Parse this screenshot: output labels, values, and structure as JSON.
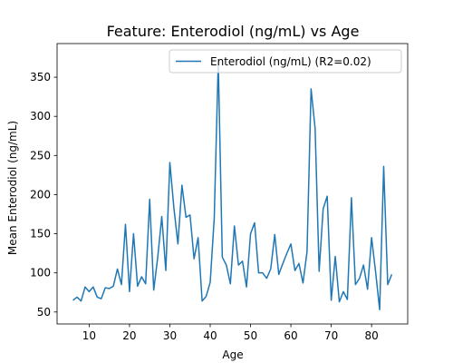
{
  "chart_data": {
    "type": "line",
    "title": "Feature: Enterodiol (ng/mL) vs Age",
    "xlabel": "Age",
    "ylabel": "Mean Enterodiol (ng/mL)",
    "xlim": [
      2.05,
      88.95
    ],
    "ylim": [
      34.7,
      393
    ],
    "xticks": [
      10,
      20,
      30,
      40,
      50,
      60,
      70,
      80
    ],
    "yticks": [
      50,
      100,
      150,
      200,
      250,
      300,
      350
    ],
    "legend_position": "top-right",
    "series": [
      {
        "name": "Enterodiol (ng/mL) (R2=0.02)",
        "color": "#1f77b4",
        "x": [
          6,
          7,
          8,
          9,
          10,
          11,
          12,
          13,
          14,
          15,
          16,
          17,
          18,
          19,
          20,
          21,
          22,
          23,
          24,
          25,
          26,
          27,
          28,
          29,
          30,
          31,
          32,
          33,
          34,
          35,
          36,
          37,
          38,
          39,
          40,
          41,
          42,
          43,
          44,
          45,
          46,
          47,
          48,
          49,
          50,
          51,
          52,
          53,
          54,
          55,
          56,
          57,
          58,
          59,
          60,
          61,
          62,
          63,
          64,
          65,
          66,
          67,
          68,
          69,
          70,
          71,
          72,
          73,
          74,
          75,
          76,
          77,
          78,
          79,
          80,
          81,
          82,
          83,
          84,
          85
        ],
        "y": [
          65,
          69,
          64,
          82,
          76,
          82,
          69,
          67,
          81,
          80,
          83,
          105,
          85,
          162,
          76,
          150,
          83,
          95,
          86,
          194,
          78,
          120,
          172,
          103,
          241,
          183,
          137,
          212,
          171,
          174,
          118,
          145,
          64,
          70,
          88,
          170,
          370,
          120,
          110,
          86,
          160,
          110,
          115,
          82,
          150,
          164,
          100,
          100,
          93,
          105,
          149,
          98,
          112,
          125,
          137,
          103,
          112,
          87,
          127,
          335,
          285,
          102,
          182,
          198,
          65,
          121,
          63,
          76,
          66,
          196,
          85,
          93,
          110,
          79,
          145,
          101,
          53,
          236,
          85,
          98
        ]
      }
    ]
  }
}
